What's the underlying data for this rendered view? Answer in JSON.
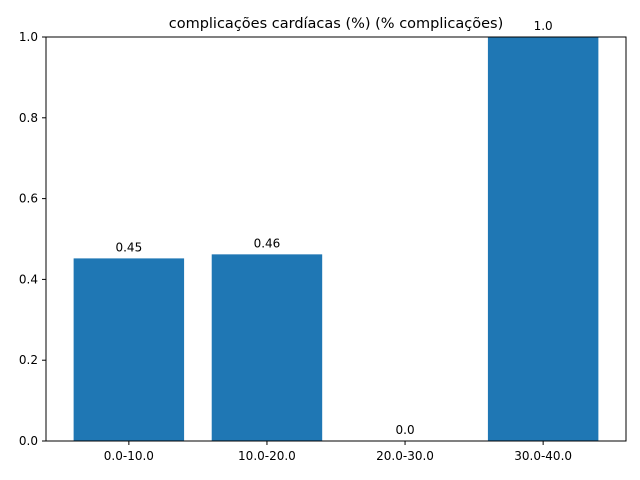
{
  "chart_data": {
    "type": "bar",
    "title": "complicações cardíacas (%) (% complicações)",
    "xlabel": "",
    "ylabel": "",
    "categories": [
      "0.0-10.0",
      "10.0-20.0",
      "20.0-30.0",
      "30.0-40.0"
    ],
    "values": [
      0.452,
      0.462,
      0.0,
      1.0
    ],
    "value_labels": [
      "0.45",
      "0.46",
      "0.0",
      "1.0"
    ],
    "ylim": [
      0,
      1.0
    ],
    "yticks": [
      0.0,
      0.2,
      0.4,
      0.6,
      0.8,
      1.0
    ],
    "ytick_labels": [
      "0.0",
      "0.2",
      "0.4",
      "0.6",
      "0.8",
      "1.0"
    ],
    "grid": false,
    "legend": "none",
    "bar_color": "#1f77b4"
  }
}
